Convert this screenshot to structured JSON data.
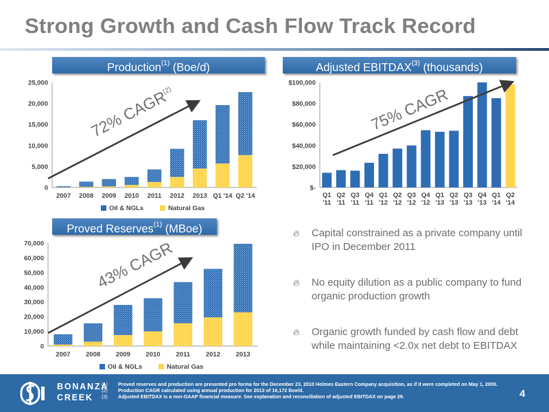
{
  "title": "Strong Growth and Cash Flow Track Record",
  "headers": {
    "production": {
      "text": "Production",
      "sup": "(1)",
      "rest": " (Boe/d)"
    },
    "ebitdax": {
      "text": "Adjusted EBITDAX",
      "sup": "(3)",
      "rest": " (thousands)"
    },
    "reserves": {
      "text": "Proved Reserves",
      "sup": "(1)",
      "rest": " (MBoe)"
    }
  },
  "bullets": [
    "Capital constrained as a private company until IPO in December 2011",
    "No equity dilution as a public company to fund organic production growth",
    "Organic growth funded by cash flow and debt while maintaining <2.0x net debt to EBITDAX"
  ],
  "footnotes": [
    {
      "num": "(1)",
      "text": "Proved reserves and production are presented pro forma for the December 23, 2010 Holmes Eastern Company acquisition, as if it were completed on May 1, 2009."
    },
    {
      "num": "(2)",
      "text": "Production CAGR calculated using annual production for 2013 of 16,172 Boe/d."
    },
    {
      "num": "(3)",
      "text": "Adjusted EBITDAX is a non-GAAP financial measure. See explanation and reconciliation of adjusted EBITDAX on page 29."
    }
  ],
  "logo": {
    "line1": "BONANZA",
    "line2": "CREEK"
  },
  "page_number": "4",
  "colors": {
    "oil": "#2e6db4",
    "gas": "#ffd54f",
    "header": "#3574b5",
    "footer": "#2d6aa6",
    "arrow": "#3a3a3a",
    "title": "#7f7f7f"
  },
  "bullet_icon": "flame-bullet-icon",
  "chart_data": [
    {
      "id": "production",
      "type": "bar",
      "stacked": true,
      "categories": [
        "2007",
        "2008",
        "2009",
        "2010",
        "2011",
        "2012",
        "2013",
        "Q1 '14",
        "Q2 '14"
      ],
      "series": [
        {
          "name": "Oil & NGLs",
          "values": [
            250,
            1250,
            1750,
            1900,
            3000,
            6700,
            11500,
            13900,
            15000
          ]
        },
        {
          "name": "Natural Gas",
          "values": [
            50,
            150,
            250,
            600,
            1300,
            2500,
            4500,
            5700,
            7700
          ]
        }
      ],
      "ylim": [
        0,
        25000
      ],
      "yticks": [
        "0",
        "5,000",
        "10,000",
        "15,000",
        "20,000",
        "25,000"
      ],
      "annotation": {
        "text": "72% CAGR",
        "sup": "(2)"
      },
      "legend": "bottom"
    },
    {
      "id": "ebitdax",
      "type": "bar",
      "categories": [
        "Q1 '11",
        "Q2 '11",
        "Q3 '11",
        "Q4 '11",
        "Q1 '12",
        "Q2 '12",
        "Q3 '12",
        "Q4 '12",
        "Q1 '13",
        "Q2 '13",
        "Q3 '13",
        "Q4 '13",
        "Q1 '14",
        "Q2 '14"
      ],
      "values": [
        14000,
        16500,
        16000,
        23500,
        32000,
        37000,
        40000,
        54500,
        53000,
        54000,
        87000,
        100000,
        85000,
        98000
      ],
      "ylim": [
        0,
        100000
      ],
      "yticks": [
        "$-",
        "$20,000",
        "$40,000",
        "$60,000",
        "$80,000",
        "$100,000"
      ],
      "annotation": {
        "text": "75% CAGR"
      },
      "last_bar_color": "#ffd54f"
    },
    {
      "id": "reserves",
      "type": "bar",
      "stacked": true,
      "categories": [
        "2007",
        "2008",
        "2009",
        "2010",
        "2011",
        "2012",
        "2013"
      ],
      "series": [
        {
          "name": "Oil & NGLs",
          "values": [
            7000,
            12500,
            20500,
            22500,
            28000,
            33000,
            46500
          ]
        },
        {
          "name": "Natural Gas",
          "values": [
            1000,
            3000,
            7500,
            10000,
            15500,
            19500,
            23000
          ]
        }
      ],
      "ylim": [
        0,
        70000
      ],
      "yticks": [
        "0",
        "10,000",
        "20,000",
        "30,000",
        "40,000",
        "50,000",
        "60,000",
        "70,000"
      ],
      "annotation": {
        "text": "43% CAGR"
      },
      "legend": "bottom"
    }
  ]
}
